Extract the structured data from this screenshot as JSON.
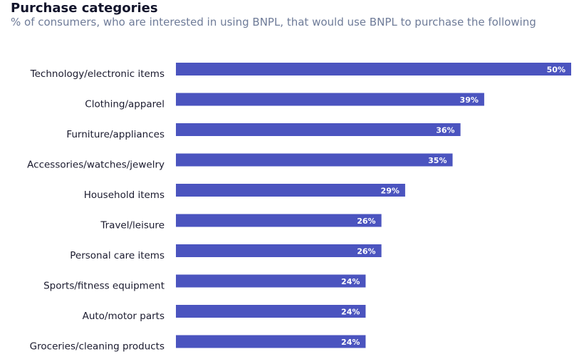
{
  "chart_data": {
    "type": "bar",
    "orientation": "horizontal",
    "title": "Purchase categories",
    "subtitle": "% of consumers, who are interested in using BNPL, that would use BNPL to purchase the following",
    "categories": [
      "Technology/electronic items",
      "Clothing/apparel",
      "Furniture/appliances",
      "Accessories/watches/jewelry",
      "Household items",
      "Travel/leisure",
      "Personal care items",
      "Sports/fitness equipment",
      "Auto/motor parts",
      "Groceries/cleaning products"
    ],
    "values": [
      50,
      39,
      36,
      35,
      29,
      26,
      26,
      24,
      24,
      24
    ],
    "value_labels": [
      "50%",
      "39%",
      "36%",
      "35%",
      "29%",
      "26%",
      "26%",
      "24%",
      "24%",
      "24%"
    ],
    "color": "#4b54bf"
  }
}
